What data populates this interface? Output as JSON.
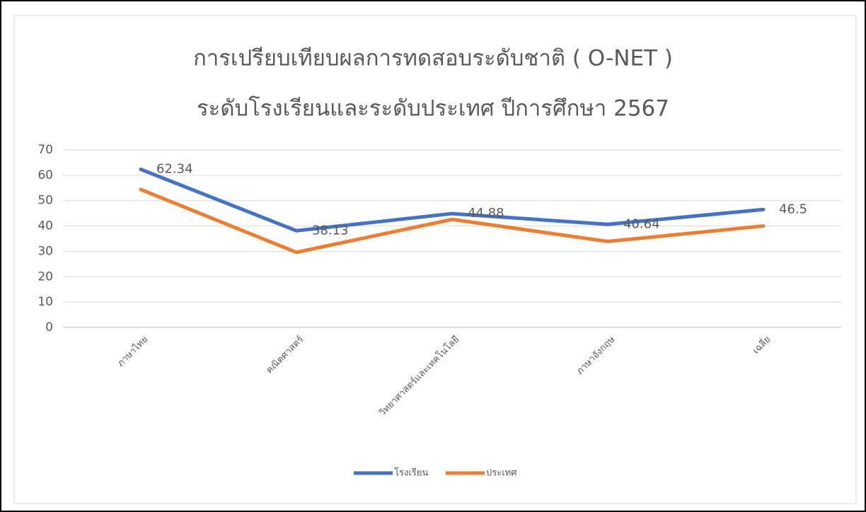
{
  "chart_data": {
    "type": "line",
    "title": [
      "การเปรียบเทียบผลการทดสอบระดับชาติ ( O-NET )",
      "ระดับโรงเรียนและระดับประเทศ ปีการศึกษา 2567"
    ],
    "categories": [
      "ภาษาไทย",
      "คณิตศาสตร์",
      "วิทยาศาสตร์และเทคโนโลยี",
      "ภาษาอังกฤษ",
      "เฉลี่ย"
    ],
    "series": [
      {
        "name": "โรงเรียน",
        "color": "#4472c4",
        "values": [
          62.34,
          38.13,
          44.88,
          40.64,
          46.5
        ],
        "data_labels": true
      },
      {
        "name": "ประเทศ",
        "color": "#ed7d31",
        "values": [
          54.4,
          29.6,
          42.6,
          33.9,
          40.0
        ]
      }
    ],
    "ylim": [
      0,
      70
    ],
    "yticks": [
      0,
      10,
      20,
      30,
      40,
      50,
      60,
      70
    ],
    "grid": true,
    "legend": "bottom"
  }
}
